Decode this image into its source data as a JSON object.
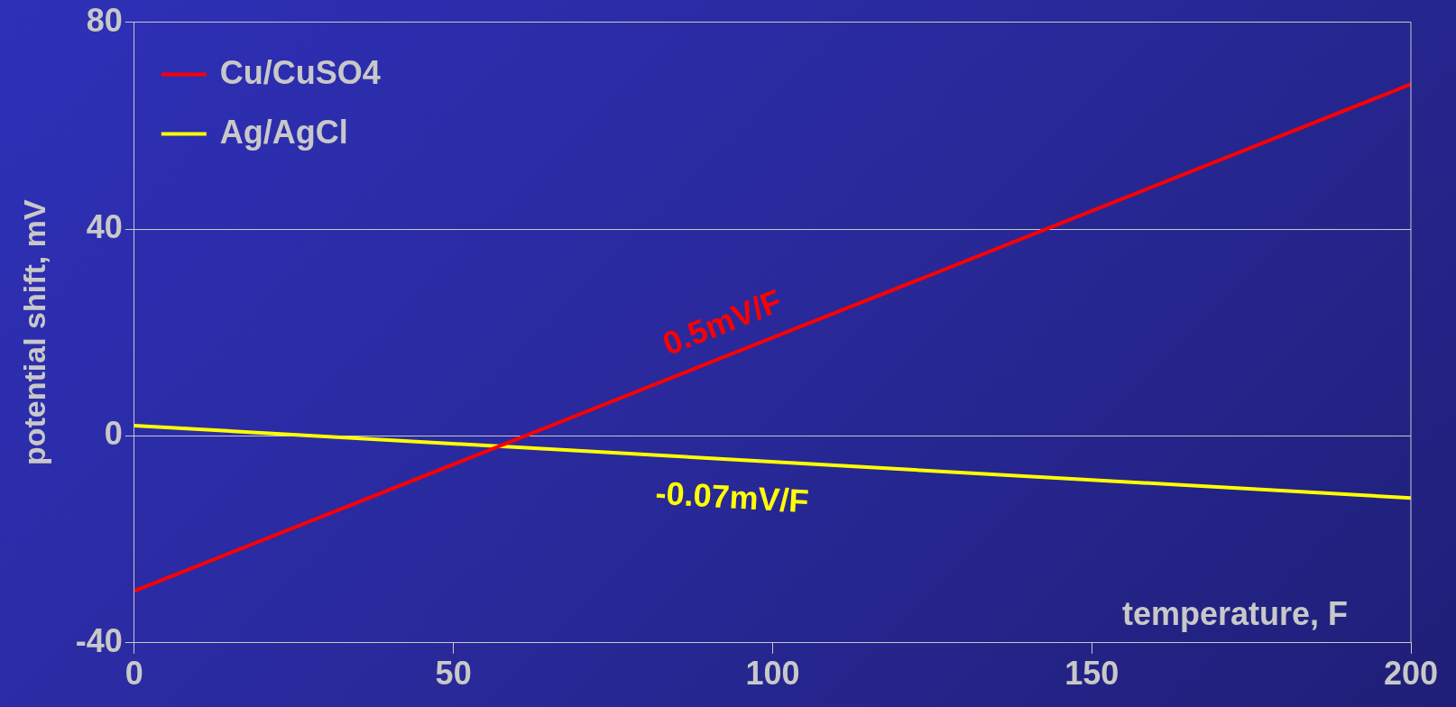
{
  "chart_data": {
    "type": "line",
    "xlabel": "temperature, F",
    "ylabel": "potential shift, mV",
    "xlim": [
      0,
      200
    ],
    "xticks": [
      0,
      50,
      100,
      150,
      200
    ],
    "ylim": [
      -40,
      80
    ],
    "yticks": [
      -40,
      0,
      40,
      80
    ],
    "grid": "y",
    "legend": "top left",
    "marker": "none",
    "line_style": "solid",
    "x": [
      0,
      200
    ],
    "series": [
      {
        "name": "Cu/CuSO4",
        "color": "#ff0000",
        "values": [
          -30,
          68
        ]
      },
      {
        "name": "Ag/AgCl",
        "color": "#ffff00",
        "values": [
          2,
          -12
        ]
      }
    ],
    "annotations": [
      "0.5mV/F",
      "-0.07mV/F"
    ]
  }
}
